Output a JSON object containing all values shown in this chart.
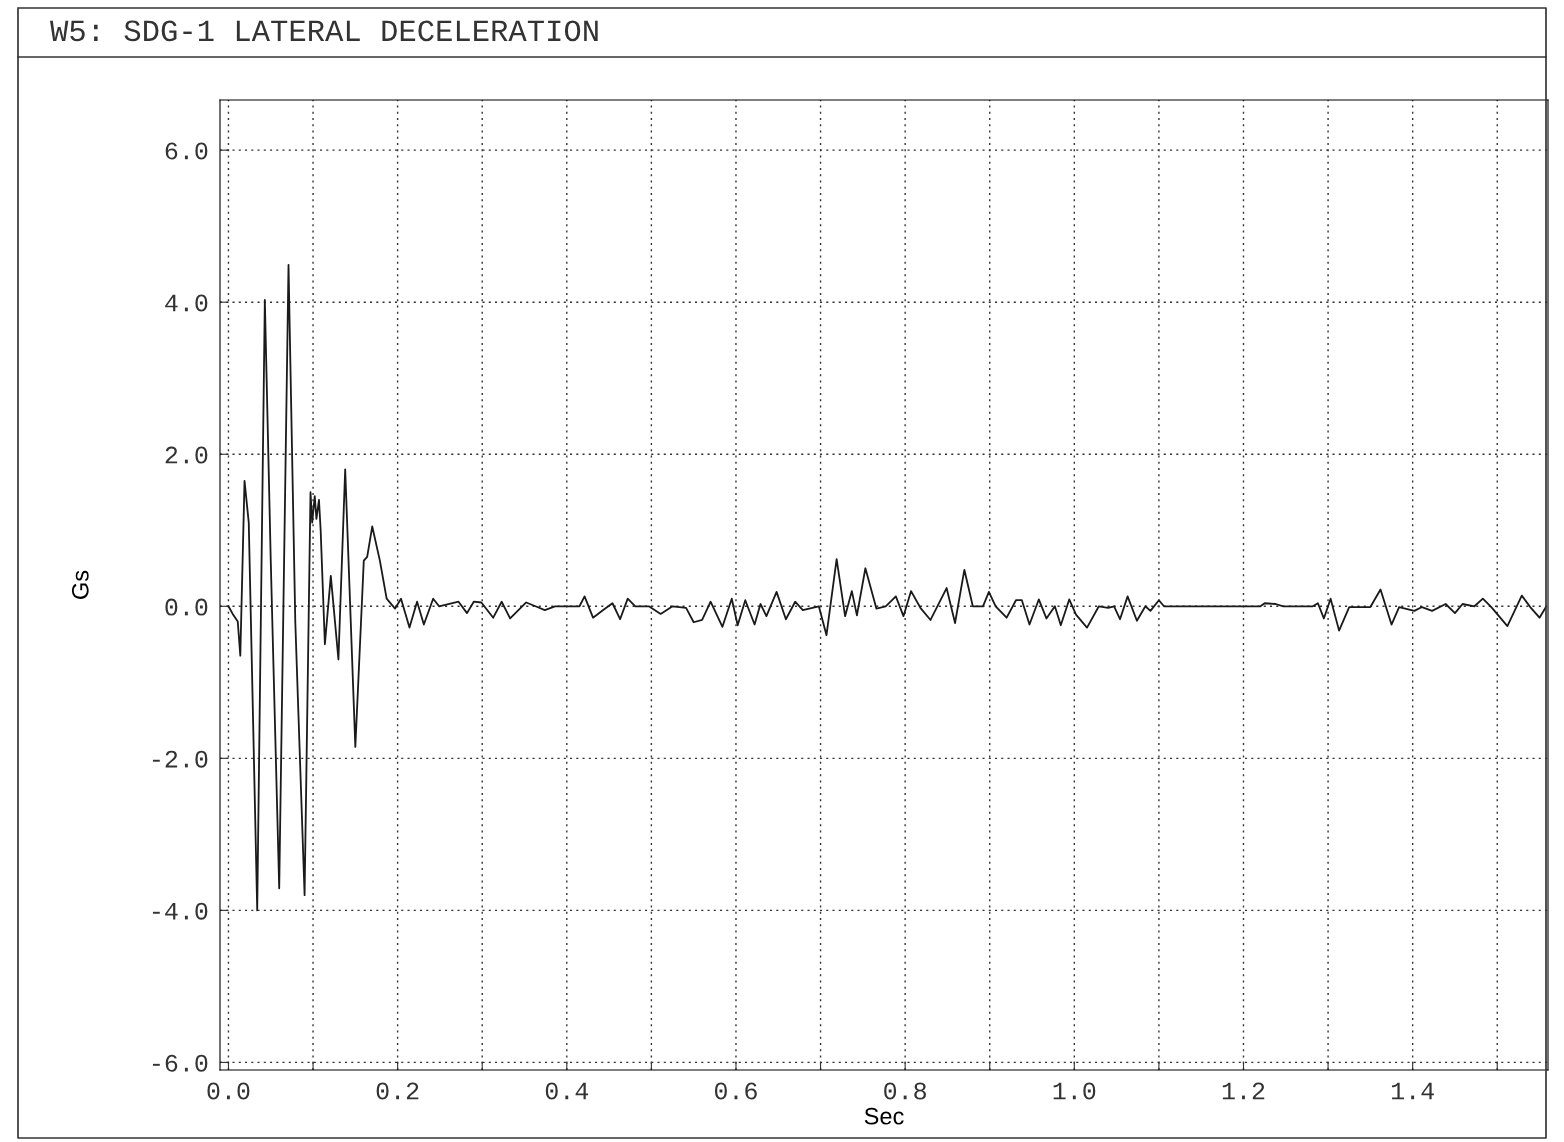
{
  "chart_data": {
    "type": "line",
    "title": "W5: SDG-1 LATERAL DECELERATION",
    "xlabel": "Sec",
    "ylabel": "Gs",
    "xlim": [
      -0.01,
      1.56
    ],
    "ylim": [
      -6.1,
      6.66
    ],
    "xticks": [
      {
        "value": 0.0,
        "label": "0.0"
      },
      {
        "value": 0.1,
        "label": null
      },
      {
        "value": 0.2,
        "label": "0.2"
      },
      {
        "value": 0.3,
        "label": null
      },
      {
        "value": 0.4,
        "label": "0.4"
      },
      {
        "value": 0.5,
        "label": null
      },
      {
        "value": 0.6,
        "label": "0.6"
      },
      {
        "value": 0.7,
        "label": null
      },
      {
        "value": 0.8,
        "label": "0.8"
      },
      {
        "value": 0.9,
        "label": null
      },
      {
        "value": 1.0,
        "label": "1.0"
      },
      {
        "value": 1.1,
        "label": null
      },
      {
        "value": 1.2,
        "label": "1.2"
      },
      {
        "value": 1.3,
        "label": null
      },
      {
        "value": 1.4,
        "label": "1.4"
      },
      {
        "value": 1.5,
        "label": null
      }
    ],
    "yticks": [
      {
        "value": -6,
        "label": "-6.0"
      },
      {
        "value": -4,
        "label": "-4.0"
      },
      {
        "value": -2,
        "label": "-2.0"
      },
      {
        "value": 0,
        "label": "0.0"
      },
      {
        "value": 2,
        "label": "2.0"
      },
      {
        "value": 4,
        "label": "4.0"
      },
      {
        "value": 6,
        "label": "6.0"
      }
    ],
    "grid": true,
    "marker": "none",
    "line_style": "solid",
    "series": [
      {
        "color": "#1a1a1a",
        "x": [
          0,
          0.005,
          0.011,
          0.014,
          0.019,
          0.024,
          0.034,
          0.043,
          0.05,
          0.06,
          0.071,
          0.079,
          0.09,
          0.097,
          0.099,
          0.102,
          0.104,
          0.107,
          0.109,
          0.114,
          0.121,
          0.13,
          0.138,
          0.15,
          0.16,
          0.164,
          0.17,
          0.179,
          0.187,
          0.197,
          0.204,
          0.214,
          0.223,
          0.231,
          0.242,
          0.249,
          0.272,
          0.282,
          0.29,
          0.299,
          0.313,
          0.323,
          0.333,
          0.352,
          0.363,
          0.374,
          0.386,
          0.415,
          0.421,
          0.431,
          0.443,
          0.454,
          0.463,
          0.472,
          0.481,
          0.497,
          0.511,
          0.525,
          0.541,
          0.55,
          0.56,
          0.57,
          0.584,
          0.595,
          0.602,
          0.611,
          0.622,
          0.629,
          0.636,
          0.648,
          0.659,
          0.67,
          0.679,
          0.698,
          0.707,
          0.719,
          0.729,
          0.737,
          0.743,
          0.753,
          0.766,
          0.777,
          0.789,
          0.798,
          0.807,
          0.818,
          0.83,
          0.849,
          0.859,
          0.87,
          0.88,
          0.892,
          0.899,
          0.907,
          0.92,
          0.931,
          0.938,
          0.947,
          0.958,
          0.967,
          0.977,
          0.984,
          0.994,
          1.002,
          1.015,
          1.029,
          1.04,
          1.047,
          1.054,
          1.063,
          1.074,
          1.084,
          1.09,
          1.1,
          1.106,
          1.22,
          1.225,
          1.238,
          1.247,
          1.282,
          1.288,
          1.295,
          1.303,
          1.313,
          1.325,
          1.35,
          1.362,
          1.375,
          1.384,
          1.402,
          1.411,
          1.423,
          1.439,
          1.45,
          1.459,
          1.473,
          1.483,
          1.493,
          1.512,
          1.529,
          1.539,
          1.55,
          1.557
        ],
        "values": [
          0,
          -0.1,
          -0.2,
          -0.65,
          1.65,
          1.1,
          -4.0,
          4.03,
          0.6,
          -3.71,
          4.49,
          -0.2,
          -3.8,
          1.5,
          1.1,
          1.45,
          1.15,
          1.4,
          1.0,
          -0.5,
          0.4,
          -0.7,
          1.8,
          -1.85,
          0.6,
          0.65,
          1.05,
          0.6,
          0.1,
          -0.03,
          0.1,
          -0.28,
          0.06,
          -0.24,
          0.1,
          0,
          0.06,
          -0.09,
          0.06,
          0.05,
          -0.15,
          0.06,
          -0.16,
          0.05,
          0,
          -0.05,
          0,
          0,
          0.13,
          -0.15,
          -0.05,
          0.04,
          -0.17,
          0.1,
          0,
          0,
          -0.1,
          0,
          -0.02,
          -0.21,
          -0.18,
          0.06,
          -0.27,
          0.1,
          -0.25,
          0.08,
          -0.24,
          0.03,
          -0.13,
          0.19,
          -0.17,
          0.06,
          -0.05,
          0,
          -0.38,
          0.62,
          -0.13,
          0.2,
          -0.12,
          0.5,
          -0.03,
          0,
          0.13,
          -0.13,
          0.2,
          -0.02,
          -0.18,
          0.24,
          -0.22,
          0.48,
          0,
          0,
          0.19,
          0,
          -0.15,
          0.08,
          0.08,
          -0.24,
          0.09,
          -0.16,
          0,
          -0.25,
          0.09,
          -0.11,
          -0.28,
          0,
          -0.02,
          0,
          -0.17,
          0.13,
          -0.19,
          0,
          -0.06,
          0.08,
          0,
          0,
          0.04,
          0.03,
          0,
          0,
          0.04,
          -0.16,
          0.1,
          -0.32,
          -0.01,
          -0.01,
          0.22,
          -0.24,
          -0.01,
          -0.06,
          -0.01,
          -0.06,
          0.03,
          -0.09,
          0.03,
          0,
          0.1,
          -0.01,
          -0.26,
          0.14,
          -0.01,
          -0.15,
          -0.02
        ]
      }
    ]
  }
}
